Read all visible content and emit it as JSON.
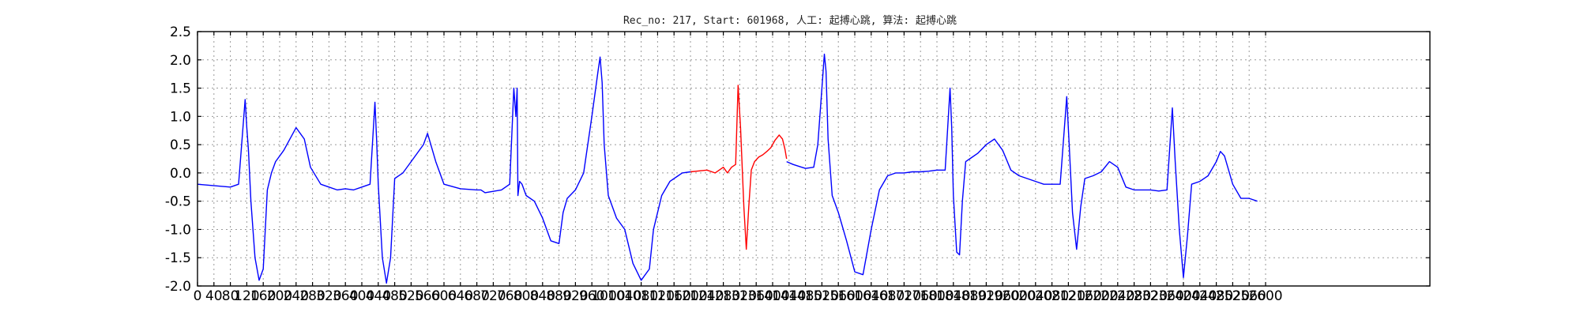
{
  "chart_data": {
    "type": "line",
    "title": "Rec_no: 217, Start: 601968, 人工: 起搏心跳, 算法: 起搏心跳",
    "xlabel": "",
    "ylabel": "",
    "xlim": [
      0,
      3000
    ],
    "ylim": [
      -2.0,
      2.5
    ],
    "yticks": [
      -2.0,
      -1.5,
      -1.0,
      -0.5,
      0.0,
      0.5,
      1.0,
      1.5,
      2.0,
      2.5
    ],
    "xticks": [
      0,
      40,
      80,
      120,
      160,
      200,
      240,
      280,
      320,
      360,
      400,
      440,
      480,
      520,
      560,
      600,
      640,
      680,
      720,
      760,
      800,
      840,
      880,
      920,
      960,
      1000,
      1040,
      1080,
      1120,
      1160,
      1200,
      1240,
      1280,
      1320,
      1360,
      1400,
      1440,
      1480,
      1520,
      1560,
      1600,
      1640,
      1680,
      1720,
      1760,
      1800,
      1840,
      1880,
      1920,
      1960,
      2000,
      2040,
      2080,
      2120,
      2160,
      2200,
      2240,
      2280,
      2320,
      2360,
      2400,
      2440,
      2480,
      2520,
      2560,
      2600
    ],
    "grid": true,
    "series": [
      {
        "color": "#0000ff",
        "x": [
          0,
          80,
          100,
          116,
          120,
          124,
          130,
          140,
          150,
          160,
          170,
          180,
          190,
          210,
          240,
          260,
          275,
          300,
          320,
          340,
          360,
          380,
          400,
          420,
          432,
          436,
          440,
          450,
          460,
          470,
          480,
          500,
          520,
          550,
          560,
          580,
          600,
          640,
          680,
          690,
          700,
          740,
          760,
          770,
          775,
          778,
          780,
          784,
          790,
          800,
          820,
          840,
          860,
          880,
          890,
          900,
          920,
          940,
          960,
          975,
          980,
          985,
          990,
          1000,
          1010,
          1020,
          1040,
          1060,
          1080,
          1100,
          1110,
          1130,
          1150,
          1170,
          1180,
          1200
        ],
        "y": [
          -0.2,
          -0.25,
          -0.2,
          1.3,
          0.8,
          0.4,
          -0.5,
          -1.5,
          -1.9,
          -1.7,
          -0.3,
          0.0,
          0.2,
          0.4,
          0.8,
          0.6,
          0.1,
          -0.2,
          -0.25,
          -0.3,
          -0.28,
          -0.3,
          -0.25,
          -0.2,
          1.25,
          0.6,
          -0.2,
          -1.5,
          -1.95,
          -1.5,
          -0.1,
          0.0,
          0.2,
          0.5,
          0.7,
          0.2,
          -0.2,
          -0.28,
          -0.3,
          -0.3,
          -0.35,
          -0.3,
          -0.2,
          1.5,
          1.0,
          1.5,
          -0.4,
          -0.15,
          -0.2,
          -0.4,
          -0.5,
          -0.8,
          -1.2,
          -1.25,
          -0.7,
          -0.45,
          -0.3,
          0.0,
          1.0,
          1.8,
          2.05,
          1.6,
          0.5,
          -0.4,
          -0.6,
          -0.8,
          -1.0,
          -1.6,
          -1.9,
          -1.7,
          -1.0,
          -0.4,
          -0.15,
          -0.05,
          0.0,
          0.02
        ]
      },
      {
        "color": "#ff0000",
        "x": [
          1200,
          1240,
          1260,
          1280,
          1290,
          1300,
          1310,
          1316,
          1322,
          1330,
          1336,
          1342,
          1348,
          1356,
          1366,
          1376,
          1386,
          1396,
          1406,
          1416,
          1424,
          1430,
          1434
        ],
        "y": [
          0.02,
          0.05,
          0.0,
          0.1,
          0.0,
          0.1,
          0.15,
          1.55,
          0.8,
          -0.6,
          -1.35,
          -0.6,
          0.05,
          0.2,
          0.28,
          0.32,
          0.38,
          0.45,
          0.58,
          0.67,
          0.6,
          0.42,
          0.25
        ]
      },
      {
        "color": "#0000ff",
        "x": [
          1434,
          1450,
          1480,
          1500,
          1510,
          1520,
          1526,
          1530,
          1535,
          1545,
          1560,
          1580,
          1600,
          1620,
          1640,
          1660,
          1680,
          1700,
          1720,
          1740,
          1760,
          1780,
          1800,
          1820,
          1832,
          1836,
          1840,
          1848,
          1855,
          1862,
          1870,
          1880,
          1900,
          1920,
          1940,
          1960,
          1980,
          2000,
          2040,
          2060,
          2080,
          2100,
          2116,
          2122,
          2130,
          2140,
          2150,
          2160,
          2180,
          2200,
          2220,
          2240,
          2260,
          2280,
          2300,
          2320,
          2340,
          2360,
          2373,
          2380,
          2390,
          2400,
          2410,
          2420,
          2440,
          2460,
          2480,
          2490,
          2500,
          2520,
          2540,
          2560,
          2580
        ],
        "y": [
          0.2,
          0.15,
          0.08,
          0.1,
          0.5,
          1.5,
          2.1,
          1.8,
          0.6,
          -0.4,
          -0.7,
          -1.2,
          -1.75,
          -1.8,
          -1.0,
          -0.3,
          -0.05,
          0.0,
          0.0,
          0.02,
          0.02,
          0.03,
          0.05,
          0.05,
          1.5,
          0.8,
          -0.4,
          -1.4,
          -1.45,
          -0.5,
          0.2,
          0.25,
          0.35,
          0.5,
          0.6,
          0.4,
          0.05,
          -0.05,
          -0.15,
          -0.2,
          -0.2,
          -0.2,
          1.35,
          0.5,
          -0.7,
          -1.35,
          -0.6,
          -0.1,
          -0.05,
          0.02,
          0.2,
          0.1,
          -0.25,
          -0.3,
          -0.3,
          -0.3,
          -0.32,
          -0.3,
          1.15,
          0.2,
          -1.0,
          -1.85,
          -1.1,
          -0.2,
          -0.15,
          -0.05,
          0.2,
          0.38,
          0.3,
          -0.2,
          -0.45,
          -0.45,
          -0.5
        ]
      }
    ]
  }
}
